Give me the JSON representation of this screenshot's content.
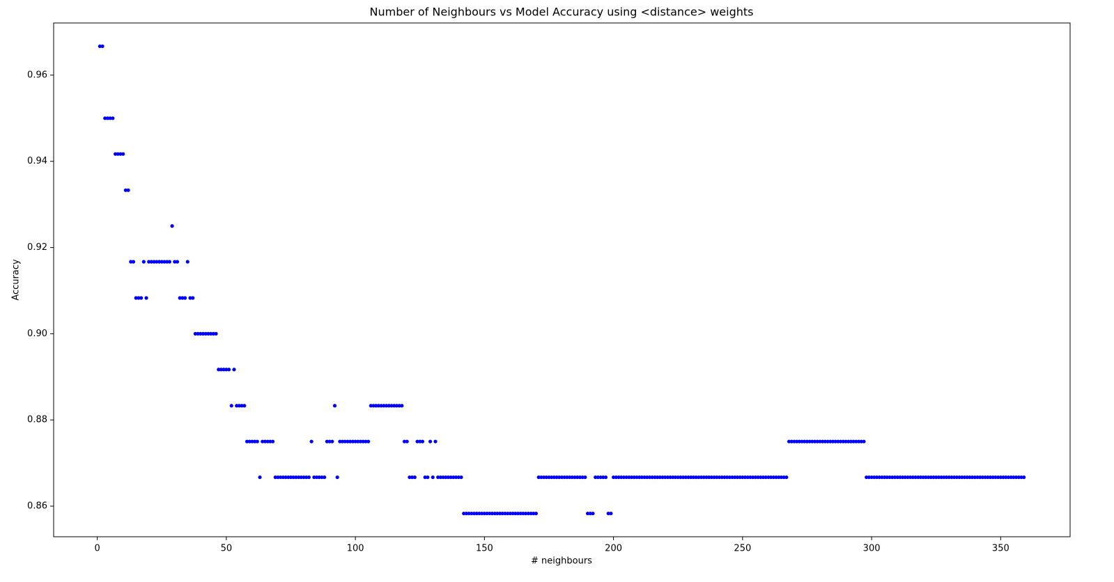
{
  "chart_data": {
    "type": "scatter",
    "title": "Number of Neighbours vs Model Accuracy using <distance> weights",
    "x_label": "# neighbours",
    "y_label": "Accuracy",
    "color": "#0000ff",
    "xlim": [
      -16.9,
      376.9
    ],
    "ylim": [
      0.8529,
      0.9721
    ],
    "xticks": [
      0,
      50,
      100,
      150,
      200,
      250,
      300,
      350
    ],
    "yticks": [
      0.86,
      0.88,
      {
        "value": 0.9,
        "label": "0.90"
      },
      0.92,
      0.94,
      0.96
    ],
    "x": [
      1,
      2,
      3,
      4,
      5,
      6,
      7,
      8,
      9,
      10,
      11,
      12,
      13,
      14,
      15,
      16,
      17,
      18,
      19,
      20,
      21,
      22,
      23,
      24,
      25,
      26,
      27,
      28,
      29,
      30,
      31,
      32,
      33,
      34,
      35,
      36,
      37,
      38,
      39,
      40,
      41,
      42,
      43,
      44,
      45,
      46,
      47,
      48,
      49,
      50,
      51,
      52,
      53,
      54,
      55,
      56,
      57,
      58,
      59,
      60,
      61,
      62,
      63,
      64,
      65,
      66,
      67,
      68,
      69,
      70,
      71,
      72,
      73,
      74,
      75,
      76,
      77,
      78,
      79,
      80,
      81,
      82,
      83,
      84,
      85,
      86,
      87,
      88,
      89,
      90,
      91,
      92,
      93,
      94,
      95,
      96,
      97,
      98,
      99,
      100,
      101,
      102,
      103,
      104,
      105,
      106,
      107,
      108,
      109,
      110,
      111,
      112,
      113,
      114,
      115,
      116,
      117,
      118,
      119,
      120,
      121,
      122,
      123,
      124,
      125,
      126,
      127,
      128,
      129,
      130,
      131,
      132,
      133,
      134,
      135,
      136,
      137,
      138,
      139,
      140,
      141,
      142,
      143,
      144,
      145,
      146,
      147,
      148,
      149,
      150,
      151,
      152,
      153,
      154,
      155,
      156,
      157,
      158,
      159,
      160,
      161,
      162,
      163,
      164,
      165,
      166,
      167,
      168,
      169,
      170,
      171,
      172,
      173,
      174,
      175,
      176,
      177,
      178,
      179,
      180,
      181,
      182,
      183,
      184,
      185,
      186,
      187,
      188,
      189,
      190,
      191,
      192,
      193,
      194,
      195,
      196,
      197,
      198,
      199,
      200,
      201,
      202,
      203,
      204,
      205,
      206,
      207,
      208,
      209,
      210,
      211,
      212,
      213,
      214,
      215,
      216,
      217,
      218,
      219,
      220,
      221,
      222,
      223,
      224,
      225,
      226,
      227,
      228,
      229,
      230,
      231,
      232,
      233,
      234,
      235,
      236,
      237,
      238,
      239,
      240,
      241,
      242,
      243,
      244,
      245,
      246,
      247,
      248,
      249,
      250,
      251,
      252,
      253,
      254,
      255,
      256,
      257,
      258,
      259,
      260,
      261,
      262,
      263,
      264,
      265,
      266,
      267,
      268,
      269,
      270,
      271,
      272,
      273,
      274,
      275,
      276,
      277,
      278,
      279,
      280,
      281,
      282,
      283,
      284,
      285,
      286,
      287,
      288,
      289,
      290,
      291,
      292,
      293,
      294,
      295,
      296,
      297,
      298,
      299,
      300,
      301,
      302,
      303,
      304,
      305,
      306,
      307,
      308,
      309,
      310,
      311,
      312,
      313,
      314,
      315,
      316,
      317,
      318,
      319,
      320,
      321,
      322,
      323,
      324,
      325,
      326,
      327,
      328,
      329,
      330,
      331,
      332,
      333,
      334,
      335,
      336,
      337,
      338,
      339,
      340,
      341,
      342,
      343,
      344,
      345,
      346,
      347,
      348,
      349,
      350,
      351,
      352,
      353,
      354,
      355,
      356,
      357,
      358,
      359
    ],
    "values": [
      0.9667,
      0.9667,
      0.95,
      0.95,
      0.95,
      0.95,
      0.9417,
      0.9417,
      0.9417,
      0.9417,
      0.9333,
      0.9333,
      0.9167,
      0.9167,
      0.9083,
      0.9083,
      0.9083,
      0.9167,
      0.9083,
      0.9167,
      0.9167,
      0.9167,
      0.9167,
      0.9167,
      0.9167,
      0.9167,
      0.9167,
      0.9167,
      0.925,
      0.9167,
      0.9167,
      0.9083,
      0.9083,
      0.9083,
      0.9167,
      0.9083,
      0.9083,
      0.9,
      0.9,
      0.9,
      0.9,
      0.9,
      0.9,
      0.9,
      0.9,
      0.9,
      0.8917,
      0.8917,
      0.8917,
      0.8917,
      0.8917,
      0.8833,
      0.8917,
      0.8833,
      0.8833,
      0.8833,
      0.8833,
      0.875,
      0.875,
      0.875,
      0.875,
      0.875,
      0.8667,
      0.875,
      0.875,
      0.875,
      0.875,
      0.875,
      0.8667,
      0.8667,
      0.8667,
      0.8667,
      0.8667,
      0.8667,
      0.8667,
      0.8667,
      0.8667,
      0.8667,
      0.8667,
      0.8667,
      0.8667,
      0.8667,
      0.875,
      0.8667,
      0.8667,
      0.8667,
      0.8667,
      0.8667,
      0.875,
      0.875,
      0.875,
      0.8833,
      0.8667,
      0.875,
      0.875,
      0.875,
      0.875,
      0.875,
      0.875,
      0.875,
      0.875,
      0.875,
      0.875,
      0.875,
      0.875,
      0.8833,
      0.8833,
      0.8833,
      0.8833,
      0.8833,
      0.8833,
      0.8833,
      0.8833,
      0.8833,
      0.8833,
      0.8833,
      0.8833,
      0.8833,
      0.875,
      0.875,
      0.8667,
      0.8667,
      0.8667,
      0.875,
      0.875,
      0.875,
      0.8667,
      0.8667,
      0.875,
      0.8667,
      0.875,
      0.8667,
      0.8667,
      0.8667,
      0.8667,
      0.8667,
      0.8667,
      0.8667,
      0.8667,
      0.8667,
      0.8667,
      0.8583,
      0.8583,
      0.8583,
      0.8583,
      0.8583,
      0.8583,
      0.8583,
      0.8583,
      0.8583,
      0.8583,
      0.8583,
      0.8583,
      0.8583,
      0.8583,
      0.8583,
      0.8583,
      0.8583,
      0.8583,
      0.8583,
      0.8583,
      0.8583,
      0.8583,
      0.8583,
      0.8583,
      0.8583,
      0.8583,
      0.8583,
      0.8583,
      0.8583,
      0.8667,
      0.8667,
      0.8667,
      0.8667,
      0.8667,
      0.8667,
      0.8667,
      0.8667,
      0.8667,
      0.8667,
      0.8667,
      0.8667,
      0.8667,
      0.8667,
      0.8667,
      0.8667,
      0.8667,
      0.8667,
      0.8667,
      0.8583,
      0.8583,
      0.8583,
      0.8667,
      0.8667,
      0.8667,
      0.8667,
      0.8667,
      0.8583,
      0.8583,
      0.8667,
      0.8667,
      0.8667,
      0.8667,
      0.8667,
      0.8667,
      0.8667,
      0.8667,
      0.8667,
      0.8667,
      0.8667,
      0.8667,
      0.8667,
      0.8667,
      0.8667,
      0.8667,
      0.8667,
      0.8667,
      0.8667,
      0.8667,
      0.8667,
      0.8667,
      0.8667,
      0.8667,
      0.8667,
      0.8667,
      0.8667,
      0.8667,
      0.8667,
      0.8667,
      0.8667,
      0.8667,
      0.8667,
      0.8667,
      0.8667,
      0.8667,
      0.8667,
      0.8667,
      0.8667,
      0.8667,
      0.8667,
      0.8667,
      0.8667,
      0.8667,
      0.8667,
      0.8667,
      0.8667,
      0.8667,
      0.8667,
      0.8667,
      0.8667,
      0.8667,
      0.8667,
      0.8667,
      0.8667,
      0.8667,
      0.8667,
      0.8667,
      0.8667,
      0.8667,
      0.8667,
      0.8667,
      0.8667,
      0.8667,
      0.8667,
      0.8667,
      0.8667,
      0.8667,
      0.875,
      0.875,
      0.875,
      0.875,
      0.875,
      0.875,
      0.875,
      0.875,
      0.875,
      0.875,
      0.875,
      0.875,
      0.875,
      0.875,
      0.875,
      0.875,
      0.875,
      0.875,
      0.875,
      0.875,
      0.875,
      0.875,
      0.875,
      0.875,
      0.875,
      0.875,
      0.875,
      0.875,
      0.875,
      0.875,
      0.8667,
      0.8667,
      0.8667,
      0.8667,
      0.8667,
      0.8667,
      0.8667,
      0.8667,
      0.8667,
      0.8667,
      0.8667,
      0.8667,
      0.8667,
      0.8667,
      0.8667,
      0.8667,
      0.8667,
      0.8667,
      0.8667,
      0.8667,
      0.8667,
      0.8667,
      0.8667,
      0.8667,
      0.8667,
      0.8667,
      0.8667,
      0.8667,
      0.8667,
      0.8667,
      0.8667,
      0.8667,
      0.8667,
      0.8667,
      0.8667,
      0.8667,
      0.8667,
      0.8667,
      0.8667,
      0.8667,
      0.8667,
      0.8667,
      0.8667,
      0.8667,
      0.8667,
      0.8667,
      0.8667,
      0.8667,
      0.8667,
      0.8667,
      0.8667,
      0.8667,
      0.8667,
      0.8667,
      0.8667,
      0.8667,
      0.8667,
      0.8667,
      0.8667,
      0.8667,
      0.8667,
      0.8667
    ]
  }
}
